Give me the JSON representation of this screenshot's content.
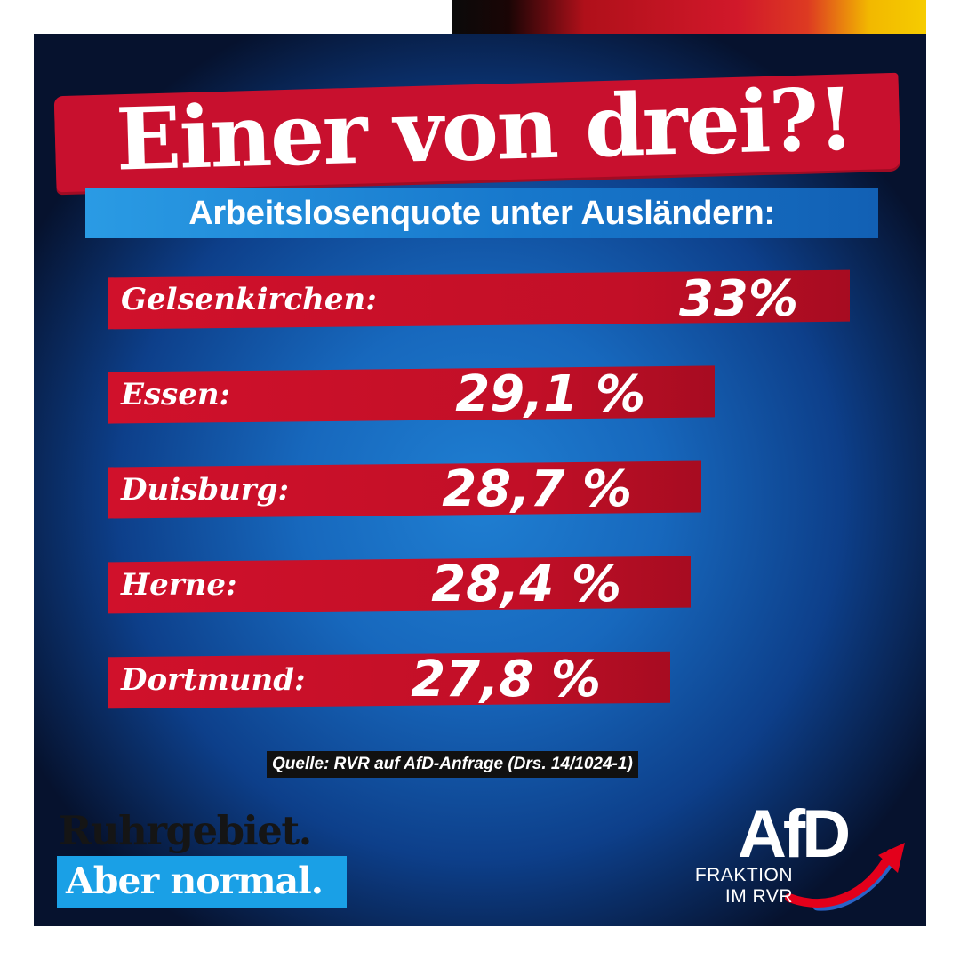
{
  "headline": "Einer von drei?!",
  "subtitle": "Arbeitslosenquote unter Ausländern:",
  "chart_data": {
    "type": "bar",
    "orientation": "horizontal",
    "categories": [
      "Gelsenkirchen:",
      "Essen:",
      "Duisburg:",
      "Herne:",
      "Dortmund:"
    ],
    "values": [
      33,
      29.1,
      28.7,
      28.4,
      27.8
    ],
    "value_labels": [
      "33%",
      "29,1 %",
      "28,7 %",
      "28,4 %",
      "27,8 %"
    ],
    "unit": "%",
    "bar_color": "#c8102e",
    "grid": false
  },
  "source": "Quelle: RVR auf AfD-Anfrage (Drs. 14/1024-1)",
  "slogan": {
    "line1": "Ruhrgebiet.",
    "line2": "Aber normal."
  },
  "logo": {
    "name": "AfD",
    "line1": "FRAKTION",
    "line2": "IM RVR"
  },
  "colors": {
    "red": "#c8102e",
    "blue": "#1768bd",
    "light_blue": "#1aa0e6",
    "swoosh_red": "#e3001b",
    "swoosh_blue": "#2a63c6"
  }
}
